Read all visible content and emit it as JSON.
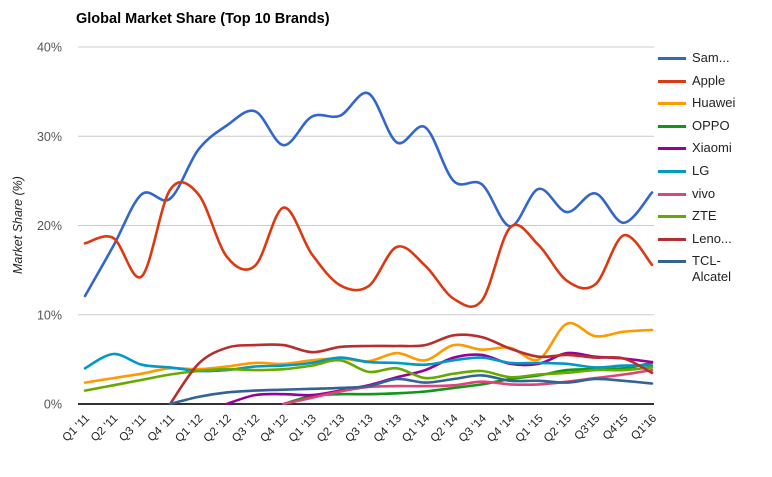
{
  "chart_data": {
    "type": "line",
    "title": "Global Market Share (Top 10 Brands)",
    "xlabel": "",
    "ylabel": "Market Share (%)",
    "ylim": [
      0,
      40
    ],
    "y_ticks": [
      "0%",
      "10%",
      "20%",
      "30%",
      "40%"
    ],
    "y_tick_values": [
      0,
      10,
      20,
      30,
      40
    ],
    "grid": true,
    "legend_position": "right",
    "curve": "smooth",
    "categories": [
      "Q1 '11",
      "Q2 '11",
      "Q3 '11",
      "Q4 '11",
      "Q1 '12",
      "Q2 '12",
      "Q3 '12",
      "Q4 '12",
      "Q1 '13",
      "Q2 '13",
      "Q3 '13",
      "Q4 '13",
      "Q1 '14",
      "Q2 '14",
      "Q3 '14",
      "Q4 '14",
      "Q1 '15",
      "Q2 '15",
      "Q3'15",
      "Q4'15",
      "Q1'16"
    ],
    "series": [
      {
        "name": "Samsung",
        "legend_label": "Sam...",
        "color": "#3366CC",
        "values": [
          12.1,
          17.7,
          23.5,
          23.0,
          28.5,
          31.2,
          32.8,
          29.0,
          32.2,
          32.3,
          34.8,
          29.3,
          31.0,
          25.0,
          24.6,
          19.9,
          24.1,
          21.5,
          23.6,
          20.3,
          23.7
        ]
      },
      {
        "name": "Apple",
        "legend_label": "Apple",
        "color": "#DC3912",
        "values": [
          18.0,
          18.6,
          14.3,
          24.0,
          23.5,
          16.5,
          15.5,
          22.0,
          16.8,
          13.3,
          13.2,
          17.6,
          15.5,
          11.8,
          11.6,
          19.8,
          17.8,
          13.8,
          13.4,
          18.9,
          15.6
        ]
      },
      {
        "name": "Huawei",
        "legend_label": "Huawei",
        "color": "#FF9900",
        "values": [
          2.4,
          2.9,
          3.4,
          4.0,
          3.9,
          4.2,
          4.6,
          4.5,
          4.9,
          5.1,
          4.8,
          5.7,
          4.9,
          6.6,
          6.1,
          6.3,
          5.0,
          9.0,
          7.6,
          8.1,
          8.3
        ]
      },
      {
        "name": "OPPO",
        "legend_label": "OPPO",
        "color": "#109618",
        "values": [
          null,
          null,
          null,
          null,
          null,
          null,
          null,
          0,
          0.9,
          1.1,
          1.1,
          1.2,
          1.4,
          1.8,
          2.2,
          2.8,
          3.2,
          3.8,
          3.9,
          4.0,
          4.6
        ]
      },
      {
        "name": "Xiaomi",
        "legend_label": "Xiaomi",
        "color": "#990099",
        "values": [
          null,
          null,
          null,
          null,
          null,
          0,
          1.0,
          1.1,
          1.0,
          1.5,
          2.1,
          3.0,
          3.8,
          5.2,
          5.5,
          4.5,
          4.5,
          5.7,
          5.3,
          5.1,
          4.7
        ]
      },
      {
        "name": "LG",
        "legend_label": "LG",
        "color": "#0099C6",
        "values": [
          4.0,
          5.6,
          4.4,
          4.1,
          3.7,
          3.8,
          4.2,
          4.3,
          4.6,
          5.2,
          4.7,
          4.6,
          4.4,
          4.9,
          5.2,
          4.6,
          4.6,
          4.5,
          4.1,
          4.3,
          4.3
        ]
      },
      {
        "name": "vivo",
        "legend_label": "vivo",
        "color": "#DD4477",
        "values": [
          null,
          null,
          null,
          null,
          null,
          null,
          null,
          0,
          0.7,
          1.4,
          1.9,
          2.0,
          2.0,
          2.1,
          2.5,
          2.2,
          2.2,
          2.5,
          2.9,
          3.3,
          3.8
        ]
      },
      {
        "name": "ZTE",
        "legend_label": "ZTE",
        "color": "#66AA00",
        "values": [
          1.5,
          2.1,
          2.7,
          3.3,
          3.7,
          3.9,
          3.8,
          3.9,
          4.3,
          4.9,
          3.6,
          4.0,
          2.9,
          3.4,
          3.7,
          3.0,
          3.3,
          3.5,
          3.8,
          3.8,
          4.1
        ]
      },
      {
        "name": "Lenovo",
        "legend_label": "Leno...",
        "color": "#B82E2E",
        "values": [
          null,
          null,
          null,
          0,
          4.5,
          6.3,
          6.6,
          6.6,
          5.8,
          6.4,
          6.5,
          6.5,
          6.6,
          7.7,
          7.5,
          6.2,
          5.3,
          5.5,
          5.2,
          5.1,
          3.5
        ]
      },
      {
        "name": "TCL-Alcatel",
        "legend_label": "TCL-Alcatel",
        "color": "#316395",
        "values": [
          null,
          null,
          null,
          0,
          0.8,
          1.3,
          1.5,
          1.6,
          1.7,
          1.8,
          2.0,
          2.8,
          2.4,
          2.8,
          3.2,
          2.6,
          2.6,
          2.4,
          2.8,
          2.6,
          2.3
        ]
      }
    ],
    "colors": {
      "gridline": "#cccccc",
      "baseline": "#333333",
      "tick_label": "#555555",
      "category_label": "#222222"
    }
  }
}
